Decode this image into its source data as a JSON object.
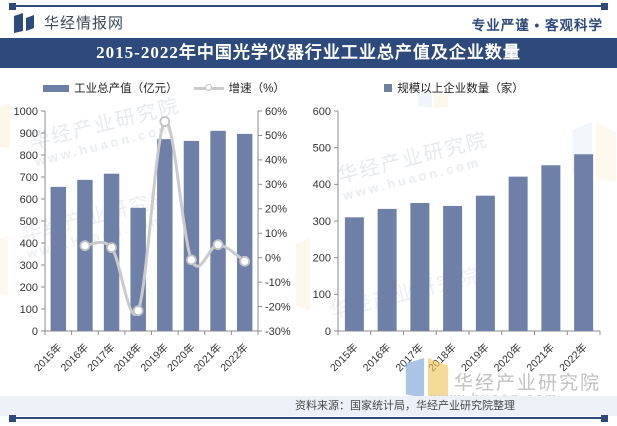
{
  "header": {
    "brand": "华经情报网",
    "slogan": "专业严谨 • 客观科学"
  },
  "title": "2015-2022年中国光学仪器行业工业总产值及企业数量",
  "watermark": {
    "name": "华经产业研究院",
    "url": "www.huaon.com"
  },
  "footer": {
    "source": "资料来源：国家统计局，华经产业研究院整理"
  },
  "colors": {
    "accent": "#2e4a7d",
    "bar": "#6e80a7",
    "line": "#cbcbcb",
    "axis": "#8c8c8c",
    "label": "#333333"
  },
  "chart_data": [
    {
      "type": "bar",
      "subtype": "bar+line-combo",
      "categories": [
        "2015年",
        "2016年",
        "2017年",
        "2018年",
        "2019年",
        "2020年",
        "2021年",
        "2022年"
      ],
      "series": [
        {
          "name": "工业总产值（亿元）",
          "type": "bar",
          "axis": "left",
          "color": "#6e80a7",
          "values": [
            655,
            687,
            715,
            560,
            872,
            864,
            910,
            896
          ]
        },
        {
          "name": "增速（%）",
          "type": "line",
          "axis": "right",
          "color": "#cbcbcb",
          "marker": {
            "fill": "#ffffff",
            "stroke": "#c2c2c2"
          },
          "values": [
            null,
            4.9,
            4.1,
            -21.7,
            55.7,
            -0.9,
            5.3,
            -1.5
          ]
        }
      ],
      "axes": {
        "left": {
          "min": 0,
          "max": 1000,
          "step": 100,
          "suffix": ""
        },
        "right": {
          "min": -30,
          "max": 60,
          "step": 10,
          "suffix": "%"
        }
      },
      "legend_position": "top",
      "grid": false
    },
    {
      "type": "bar",
      "categories": [
        "2015年",
        "2016年",
        "2017年",
        "2018年",
        "2019年",
        "2020年",
        "2021年",
        "2022年"
      ],
      "series": [
        {
          "name": "规模以上企业数量（家）",
          "type": "bar",
          "axis": "left",
          "color": "#6e80a7",
          "values": [
            310,
            333,
            349,
            341,
            369,
            421,
            452,
            482
          ]
        }
      ],
      "axes": {
        "left": {
          "min": 0,
          "max": 600,
          "step": 100,
          "suffix": ""
        }
      },
      "legend_position": "top",
      "grid": false
    }
  ]
}
